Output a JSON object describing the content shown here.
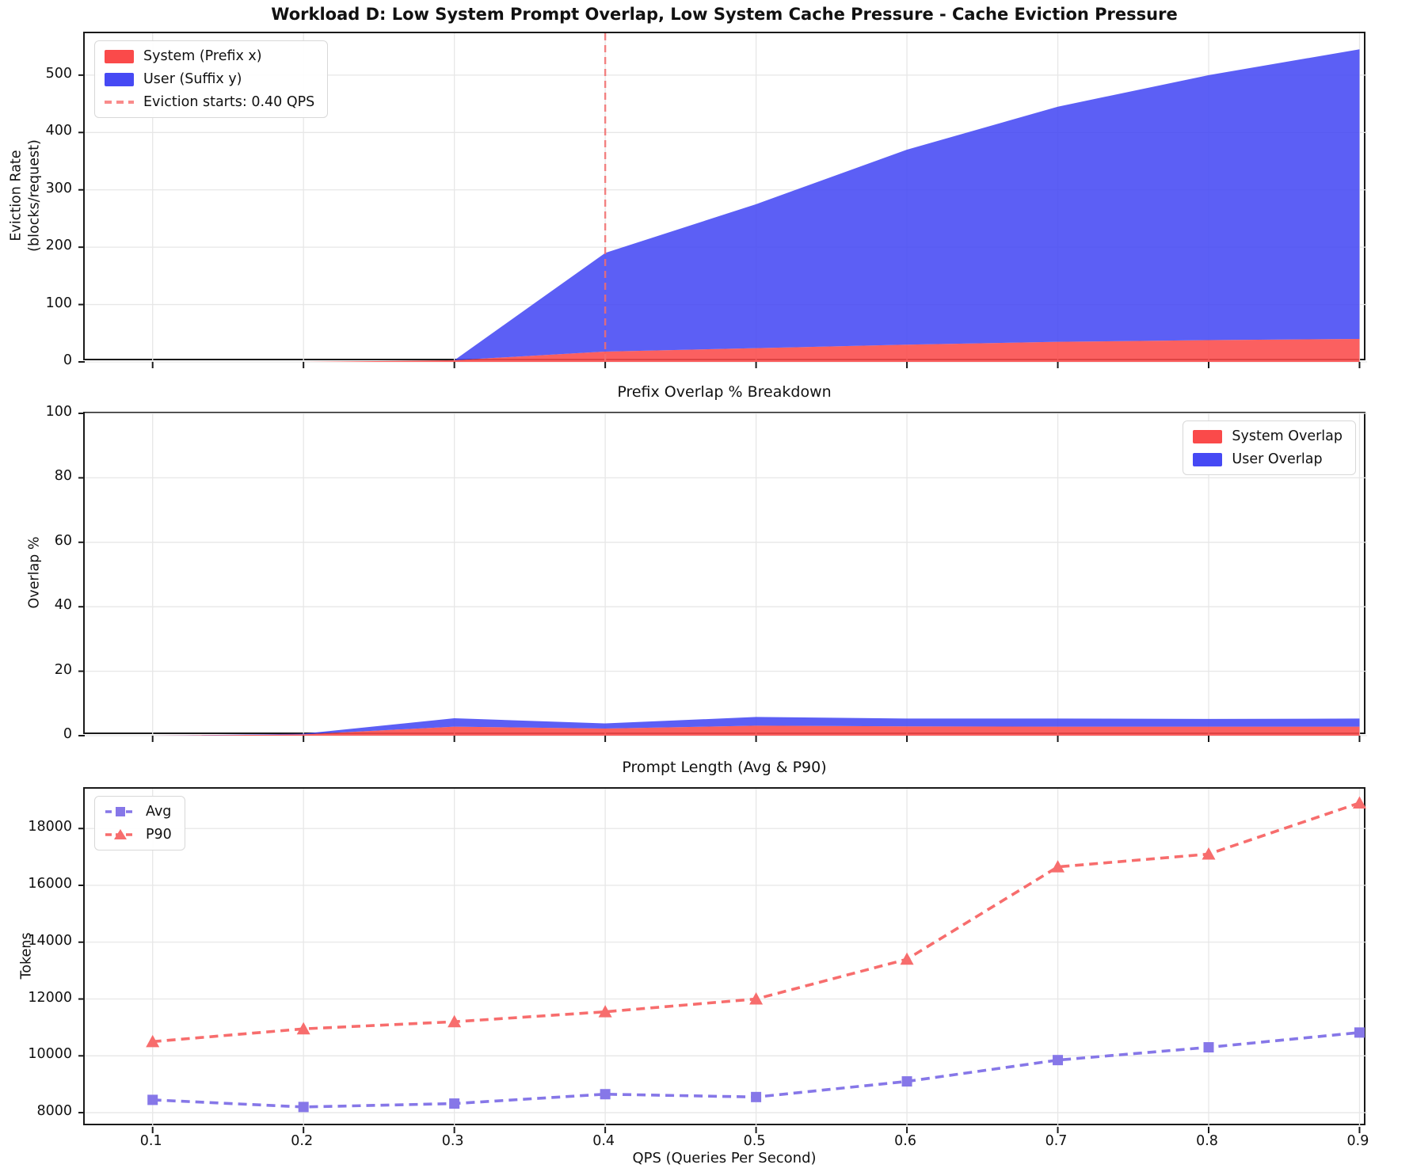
{
  "figure": {
    "background": "#ffffff"
  },
  "chart_data": [
    {
      "type": "stacked_area",
      "title": "Workload D: Low System Prompt Overlap, Low System Cache Pressure - Cache Eviction Pressure",
      "ylabel": "Eviction Rate\n(blocks/request)",
      "x": [
        0.1,
        0.2,
        0.3,
        0.4,
        0.5,
        0.6,
        0.7,
        0.8,
        0.9
      ],
      "xlim": [
        0.055,
        0.905
      ],
      "ylim": [
        0,
        573
      ],
      "yticks": [
        0,
        100,
        200,
        300,
        400,
        500
      ],
      "xticks": [
        0.1,
        0.2,
        0.3,
        0.4,
        0.5,
        0.6,
        0.7,
        0.8,
        0.9
      ],
      "xtick_labels": [],
      "grid": true,
      "series": [
        {
          "name": "System (Prefix x)",
          "color": "#fa4a4a",
          "values": [
            0,
            0,
            3,
            18,
            24,
            30,
            35,
            38,
            40
          ]
        },
        {
          "name": "User (Suffix y)",
          "color": "#4649f4",
          "values": [
            0,
            0,
            0,
            172,
            251,
            340,
            410,
            462,
            505
          ]
        }
      ],
      "vline": {
        "x": 0.4,
        "color": "#f26d6d",
        "label": "Eviction starts: 0.40 QPS"
      },
      "legend": {
        "position": "top-left",
        "entries": [
          {
            "swatch": "patch",
            "color": "#fa4a4a",
            "label": "System (Prefix x)"
          },
          {
            "swatch": "patch",
            "color": "#4649f4",
            "label": "User (Suffix y)"
          },
          {
            "swatch": "dash",
            "color": "#f98b8b",
            "label": "Eviction starts: 0.40 QPS"
          }
        ]
      }
    },
    {
      "type": "stacked_area",
      "title": "Prefix Overlap % Breakdown",
      "ylabel": "Overlap %",
      "x": [
        0.1,
        0.2,
        0.3,
        0.4,
        0.5,
        0.6,
        0.7,
        0.8,
        0.9
      ],
      "xlim": [
        0.055,
        0.905
      ],
      "ylim": [
        0,
        100
      ],
      "yticks": [
        0,
        20,
        40,
        60,
        80,
        100
      ],
      "xticks": [
        0.1,
        0.2,
        0.3,
        0.4,
        0.5,
        0.6,
        0.7,
        0.8,
        0.9
      ],
      "xtick_labels": [],
      "grid": true,
      "series": [
        {
          "name": "System Overlap",
          "color": "#fa4a4a",
          "values": [
            0,
            0.4,
            2.8,
            2.2,
            3.1,
            2.9,
            2.8,
            2.8,
            2.8
          ]
        },
        {
          "name": "User Overlap",
          "color": "#4649f4",
          "values": [
            0,
            0.2,
            2.6,
            1.6,
            2.7,
            2.4,
            2.5,
            2.4,
            2.5
          ]
        }
      ],
      "legend": {
        "position": "top-right",
        "entries": [
          {
            "swatch": "patch",
            "color": "#fa4a4a",
            "label": "System Overlap"
          },
          {
            "swatch": "patch",
            "color": "#4649f4",
            "label": "User Overlap"
          }
        ]
      }
    },
    {
      "type": "line",
      "title": "Prompt Length (Avg & P90)",
      "ylabel": "Tokens",
      "xlabel": "QPS (Queries Per Second)",
      "x": [
        0.1,
        0.2,
        0.3,
        0.4,
        0.5,
        0.6,
        0.7,
        0.8,
        0.9
      ],
      "xlim": [
        0.055,
        0.905
      ],
      "ylim": [
        7500,
        19400
      ],
      "yticks": [
        8000,
        10000,
        12000,
        14000,
        16000,
        18000
      ],
      "xticks": [
        0.1,
        0.2,
        0.3,
        0.4,
        0.5,
        0.6,
        0.7,
        0.8,
        0.9
      ],
      "xtick_labels": [
        "0.1",
        "0.2",
        "0.3",
        "0.4",
        "0.5",
        "0.6",
        "0.7",
        "0.8",
        "0.9"
      ],
      "grid": true,
      "series": [
        {
          "name": "Avg",
          "color": "#8677e8",
          "marker": "square",
          "dash": true,
          "values": [
            8450,
            8200,
            8320,
            8650,
            8550,
            9100,
            9850,
            10300,
            10820
          ]
        },
        {
          "name": "P90",
          "color": "#f76d6d",
          "marker": "triangle",
          "dash": true,
          "values": [
            10500,
            10950,
            11200,
            11550,
            12000,
            13400,
            16650,
            17100,
            18900
          ]
        }
      ],
      "legend": {
        "position": "top-left",
        "entries": [
          {
            "swatch": "square-line",
            "color": "#8677e8",
            "label": "Avg"
          },
          {
            "swatch": "triangle-line",
            "color": "#f76d6d",
            "label": "P90"
          }
        ]
      }
    }
  ]
}
